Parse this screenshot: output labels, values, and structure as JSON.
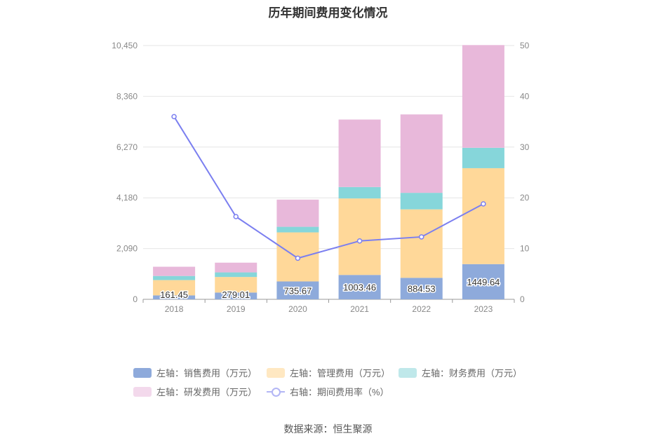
{
  "chart_data": {
    "type": "bar",
    "title": "历年期间费用变化情况",
    "categories": [
      "2018",
      "2019",
      "2020",
      "2021",
      "2022",
      "2023"
    ],
    "stacked": true,
    "series": [
      {
        "name": "左轴：销售费用（万元）",
        "axis": "left",
        "color": "#8eaadb",
        "values": [
          161.45,
          279.01,
          735.67,
          1003.46,
          884.53,
          1449.64
        ],
        "labels": [
          "161.45",
          "279.01",
          "735.67",
          "1003.46",
          "884.53",
          "1449.64"
        ]
      },
      {
        "name": "左轴：管理费用（万元）",
        "axis": "left",
        "color": "#ffd899",
        "values": [
          630,
          640,
          2020,
          3150,
          2820,
          3950
        ]
      },
      {
        "name": "左轴：财务费用（万元）",
        "axis": "left",
        "color": "#86d6da",
        "values": [
          170,
          190,
          230,
          470,
          680,
          840
        ]
      },
      {
        "name": "左轴：研发费用（万元）",
        "axis": "left",
        "color": "#e8b8da",
        "values": [
          380,
          400,
          1120,
          2780,
          3230,
          4230
        ]
      },
      {
        "name": "右轴：期间费用率（%）",
        "axis": "right",
        "type": "line",
        "color": "#7b7ff0",
        "values": [
          36.0,
          16.3,
          8.1,
          11.5,
          12.3,
          18.8
        ]
      }
    ],
    "y_left": {
      "min": 0,
      "max": 10450,
      "ticks": [
        0,
        2090,
        4180,
        6270,
        8360,
        10450
      ],
      "tick_labels": [
        "0",
        "2,090",
        "4,180",
        "6,270",
        "8,360",
        "10,450"
      ]
    },
    "y_right": {
      "min": 0,
      "max": 50,
      "ticks": [
        0,
        10,
        20,
        30,
        40,
        50
      ],
      "tick_labels": [
        "0",
        "10",
        "20",
        "30",
        "40",
        "50"
      ]
    },
    "grid": true,
    "legend_position": "bottom"
  },
  "legend_swatch_colors": {
    "sales": "#8eaadb",
    "admin": "#ffe8c2",
    "finance": "#bfe8ea",
    "rd": "#f3d9ec"
  },
  "source": "数据来源：恒生聚源"
}
